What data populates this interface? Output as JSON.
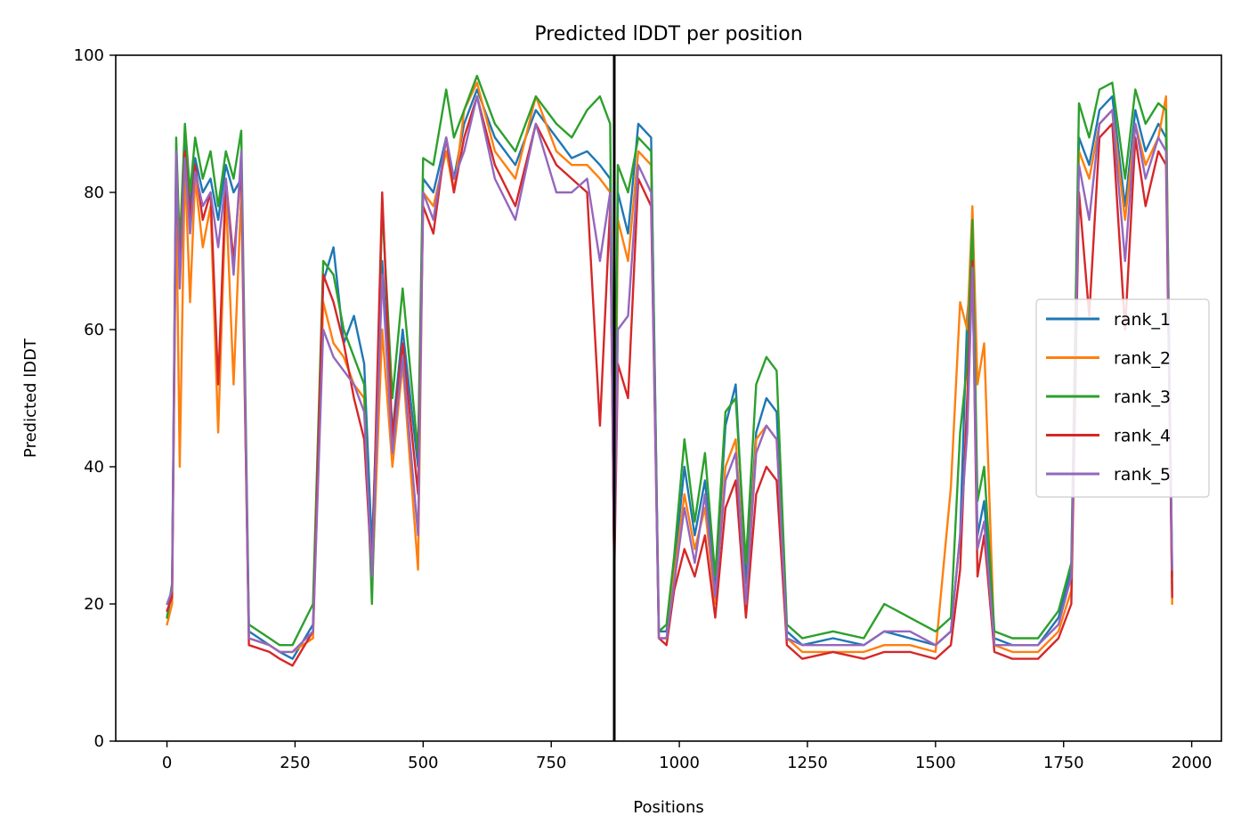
{
  "chart_data": {
    "type": "line",
    "title": "Predicted lDDT per position",
    "xlabel": "Positions",
    "ylabel": "Predicted lDDT",
    "xlim": [
      -100,
      2058
    ],
    "ylim": [
      0,
      100
    ],
    "xticks": [
      0,
      250,
      500,
      750,
      1000,
      1250,
      1500,
      1750,
      2000
    ],
    "yticks": [
      0,
      20,
      40,
      60,
      80,
      100
    ],
    "grid": false,
    "legend_position": "center-right",
    "vertical_line": {
      "x": 873,
      "color": "#000000"
    },
    "series": [
      {
        "name": "rank_1",
        "color": "#1f77b4",
        "x": [
          0,
          10,
          18,
          25,
          35,
          45,
          55,
          70,
          85,
          100,
          115,
          130,
          145,
          160,
          200,
          220,
          245,
          285,
          305,
          325,
          345,
          365,
          385,
          400,
          420,
          440,
          460,
          490,
          500,
          520,
          545,
          560,
          580,
          605,
          640,
          680,
          720,
          760,
          790,
          820,
          845,
          865,
          873,
          880,
          900,
          920,
          945,
          960,
          975,
          990,
          1010,
          1030,
          1050,
          1070,
          1090,
          1110,
          1130,
          1150,
          1170,
          1190,
          1210,
          1240,
          1300,
          1360,
          1400,
          1450,
          1500,
          1530,
          1548,
          1562,
          1572,
          1582,
          1595,
          1615,
          1650,
          1700,
          1740,
          1765,
          1780,
          1800,
          1820,
          1845,
          1870,
          1890,
          1910,
          1935,
          1950,
          1962
        ],
        "values": [
          18,
          22,
          82,
          70,
          87,
          78,
          85,
          80,
          82,
          76,
          84,
          80,
          82,
          16,
          14,
          13,
          12,
          17,
          67,
          72,
          58,
          62,
          55,
          28,
          70,
          45,
          60,
          40,
          82,
          80,
          88,
          82,
          90,
          95,
          88,
          84,
          92,
          88,
          85,
          86,
          84,
          82,
          25,
          80,
          74,
          90,
          88,
          16,
          16,
          25,
          40,
          30,
          38,
          22,
          46,
          52,
          23,
          45,
          50,
          48,
          16,
          14,
          15,
          14,
          16,
          15,
          14,
          16,
          30,
          62,
          70,
          30,
          35,
          15,
          14,
          14,
          18,
          25,
          88,
          84,
          92,
          94,
          78,
          92,
          86,
          90,
          88,
          22
        ]
      },
      {
        "name": "rank_2",
        "color": "#ff7f0e",
        "x": [
          0,
          10,
          18,
          25,
          35,
          45,
          55,
          70,
          85,
          100,
          115,
          130,
          145,
          160,
          200,
          220,
          245,
          285,
          305,
          325,
          345,
          365,
          385,
          400,
          420,
          440,
          460,
          490,
          500,
          520,
          545,
          560,
          580,
          605,
          640,
          680,
          720,
          760,
          790,
          820,
          845,
          865,
          873,
          880,
          900,
          920,
          945,
          960,
          975,
          990,
          1010,
          1030,
          1050,
          1070,
          1090,
          1110,
          1130,
          1150,
          1170,
          1190,
          1210,
          1240,
          1300,
          1360,
          1400,
          1450,
          1500,
          1530,
          1548,
          1562,
          1572,
          1582,
          1595,
          1615,
          1650,
          1700,
          1740,
          1765,
          1780,
          1800,
          1820,
          1845,
          1870,
          1890,
          1910,
          1935,
          1950,
          1962
        ],
        "values": [
          17,
          20,
          80,
          40,
          84,
          64,
          82,
          72,
          78,
          45,
          80,
          52,
          80,
          15,
          14,
          13,
          13,
          15,
          64,
          58,
          56,
          52,
          50,
          22,
          60,
          40,
          55,
          25,
          80,
          78,
          86,
          80,
          92,
          96,
          86,
          82,
          94,
          86,
          84,
          84,
          82,
          80,
          25,
          76,
          70,
          86,
          84,
          15,
          15,
          24,
          36,
          28,
          34,
          20,
          40,
          44,
          20,
          44,
          46,
          44,
          15,
          13,
          13,
          13,
          14,
          14,
          13,
          37,
          64,
          60,
          78,
          52,
          58,
          14,
          13,
          13,
          16,
          22,
          86,
          82,
          90,
          92,
          76,
          90,
          84,
          88,
          94,
          20
        ]
      },
      {
        "name": "rank_3",
        "color": "#2ca02c",
        "x": [
          0,
          10,
          18,
          25,
          35,
          45,
          55,
          70,
          85,
          100,
          115,
          130,
          145,
          160,
          200,
          220,
          245,
          285,
          305,
          325,
          345,
          365,
          385,
          400,
          420,
          440,
          460,
          490,
          500,
          520,
          545,
          560,
          580,
          605,
          640,
          680,
          720,
          760,
          790,
          820,
          845,
          865,
          873,
          880,
          900,
          920,
          945,
          960,
          975,
          990,
          1010,
          1030,
          1050,
          1070,
          1090,
          1110,
          1130,
          1150,
          1170,
          1190,
          1210,
          1240,
          1300,
          1360,
          1400,
          1450,
          1500,
          1530,
          1548,
          1562,
          1572,
          1582,
          1595,
          1615,
          1650,
          1700,
          1740,
          1765,
          1780,
          1800,
          1820,
          1845,
          1870,
          1890,
          1910,
          1935,
          1950,
          1962
        ],
        "values": [
          18,
          23,
          88,
          72,
          90,
          80,
          88,
          82,
          86,
          78,
          86,
          82,
          89,
          17,
          15,
          14,
          14,
          20,
          70,
          68,
          60,
          56,
          52,
          20,
          78,
          50,
          66,
          42,
          85,
          84,
          95,
          88,
          92,
          97,
          90,
          86,
          94,
          90,
          88,
          92,
          94,
          90,
          26,
          84,
          80,
          88,
          86,
          16,
          17,
          27,
          44,
          32,
          42,
          24,
          48,
          50,
          26,
          52,
          56,
          54,
          17,
          15,
          16,
          15,
          20,
          18,
          16,
          18,
          45,
          55,
          76,
          35,
          40,
          16,
          15,
          15,
          19,
          26,
          93,
          88,
          95,
          96,
          82,
          95,
          90,
          93,
          92,
          24
        ]
      },
      {
        "name": "rank_4",
        "color": "#d62728",
        "x": [
          0,
          10,
          18,
          25,
          35,
          45,
          55,
          70,
          85,
          100,
          115,
          130,
          145,
          160,
          200,
          220,
          245,
          285,
          305,
          325,
          345,
          365,
          385,
          400,
          420,
          440,
          460,
          490,
          500,
          520,
          545,
          560,
          580,
          605,
          640,
          680,
          720,
          760,
          790,
          820,
          845,
          865,
          873,
          880,
          900,
          920,
          945,
          960,
          975,
          990,
          1010,
          1030,
          1050,
          1070,
          1090,
          1110,
          1130,
          1150,
          1170,
          1190,
          1210,
          1240,
          1300,
          1360,
          1400,
          1450,
          1500,
          1530,
          1548,
          1562,
          1572,
          1582,
          1595,
          1615,
          1650,
          1700,
          1740,
          1765,
          1780,
          1800,
          1820,
          1845,
          1870,
          1890,
          1910,
          1935,
          1950,
          1962
        ],
        "values": [
          19,
          21,
          84,
          68,
          86,
          76,
          84,
          76,
          80,
          52,
          82,
          70,
          84,
          14,
          13,
          12,
          11,
          16,
          68,
          64,
          58,
          50,
          44,
          24,
          80,
          44,
          58,
          36,
          78,
          74,
          88,
          80,
          88,
          94,
          84,
          78,
          90,
          84,
          82,
          80,
          46,
          78,
          24,
          55,
          50,
          82,
          78,
          15,
          14,
          22,
          28,
          24,
          30,
          18,
          34,
          38,
          18,
          36,
          40,
          38,
          14,
          12,
          13,
          12,
          13,
          13,
          12,
          14,
          25,
          50,
          70,
          24,
          30,
          13,
          12,
          12,
          15,
          20,
          80,
          62,
          88,
          90,
          60,
          88,
          78,
          86,
          84,
          21
        ]
      },
      {
        "name": "rank_5",
        "color": "#9467bd",
        "x": [
          0,
          10,
          18,
          25,
          35,
          45,
          55,
          70,
          85,
          100,
          115,
          130,
          145,
          160,
          200,
          220,
          245,
          285,
          305,
          325,
          345,
          365,
          385,
          400,
          420,
          440,
          460,
          490,
          500,
          520,
          545,
          560,
          580,
          605,
          640,
          680,
          720,
          760,
          790,
          820,
          845,
          865,
          873,
          880,
          900,
          920,
          945,
          960,
          975,
          990,
          1010,
          1030,
          1050,
          1070,
          1090,
          1110,
          1130,
          1150,
          1170,
          1190,
          1210,
          1240,
          1300,
          1360,
          1400,
          1450,
          1500,
          1530,
          1548,
          1562,
          1572,
          1582,
          1595,
          1615,
          1650,
          1700,
          1740,
          1765,
          1780,
          1800,
          1820,
          1845,
          1870,
          1890,
          1910,
          1935,
          1950,
          1962
        ],
        "values": [
          20,
          22,
          86,
          66,
          85,
          74,
          83,
          78,
          80,
          72,
          82,
          68,
          86,
          15,
          14,
          13,
          13,
          16,
          60,
          56,
          54,
          52,
          48,
          24,
          68,
          42,
          56,
          30,
          80,
          76,
          88,
          82,
          86,
          94,
          82,
          76,
          90,
          80,
          80,
          82,
          70,
          80,
          26,
          60,
          62,
          84,
          80,
          15,
          15,
          23,
          34,
          26,
          36,
          21,
          38,
          42,
          20,
          42,
          46,
          44,
          15,
          14,
          14,
          14,
          16,
          16,
          14,
          16,
          30,
          45,
          69,
          28,
          32,
          14,
          14,
          14,
          17,
          24,
          84,
          76,
          90,
          92,
          70,
          90,
          82,
          88,
          86,
          25
        ]
      }
    ]
  }
}
